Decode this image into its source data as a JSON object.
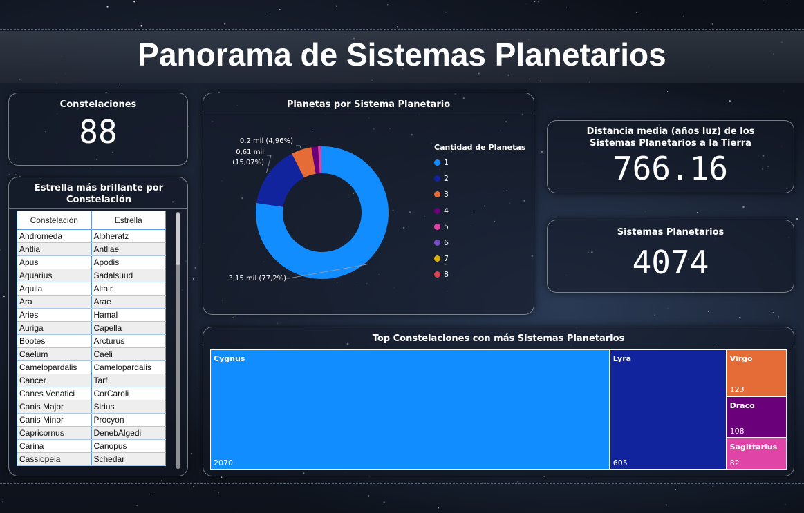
{
  "header": {
    "title": "Panorama de Sistemas Planetarios"
  },
  "kpi_constellations": {
    "title": "Constelaciones",
    "value": "88"
  },
  "kpi_distance": {
    "title": "Distancia media (años luz) de los Sistemas Planetarios a la Tierra",
    "value": "766.16"
  },
  "kpi_systems": {
    "title": "Sistemas Planetarios",
    "value": "4074"
  },
  "brightest_table": {
    "title": "Estrella más brillante por Constelación",
    "columns": [
      "Constelación",
      "Estrella"
    ],
    "rows": [
      [
        "Andromeda",
        "Alpheratz"
      ],
      [
        "Antlia",
        "Antliae"
      ],
      [
        "Apus",
        "Apodis"
      ],
      [
        "Aquarius",
        "Sadalsuud"
      ],
      [
        "Aquila",
        "Altair"
      ],
      [
        "Ara",
        "Arae"
      ],
      [
        "Aries",
        "Hamal"
      ],
      [
        "Auriga",
        "Capella"
      ],
      [
        "Bootes",
        "Arcturus"
      ],
      [
        "Caelum",
        "Caeli"
      ],
      [
        "Camelopardalis",
        "Camelopardalis"
      ],
      [
        "Cancer",
        "Tarf"
      ],
      [
        "Canes Venatici",
        "CorCaroli"
      ],
      [
        "Canis Major",
        "Sirius"
      ],
      [
        "Canis Minor",
        "Procyon"
      ],
      [
        "Capricornus",
        "DenebAlgedi"
      ],
      [
        "Carina",
        "Canopus"
      ],
      [
        "Cassiopeia",
        "Schedar"
      ]
    ]
  },
  "chart_data": [
    {
      "type": "pie",
      "title": "Planetas por Sistema Planetario",
      "legend_title": "Cantidad de Planetas",
      "legend_position": "right",
      "categories": [
        "1",
        "2",
        "3",
        "4",
        "5",
        "6",
        "7",
        "8"
      ],
      "values": [
        3145,
        614,
        202,
        66,
        25,
        10,
        4,
        1
      ],
      "colors": [
        "#118dff",
        "#12239e",
        "#e66c37",
        "#6b007b",
        "#e044a7",
        "#744ec2",
        "#d9b300",
        "#d64550"
      ],
      "data_labels": [
        {
          "category": "1",
          "text": "3,15 mil (77,2%)"
        },
        {
          "category": "2",
          "text": "0,61 mil",
          "text2": "(15,07%)"
        },
        {
          "category": "3",
          "text": "0,2 mil (4,96%)"
        }
      ]
    },
    {
      "type": "treemap",
      "title": "Top Constelaciones con más Sistemas Planetarios",
      "categories": [
        "Cygnus",
        "Lyra",
        "Virgo",
        "Draco",
        "Sagittarius"
      ],
      "values": [
        2070,
        605,
        123,
        108,
        82
      ],
      "colors": [
        "#118dff",
        "#12239e",
        "#e66c37",
        "#6b007b",
        "#e044a7"
      ]
    }
  ]
}
